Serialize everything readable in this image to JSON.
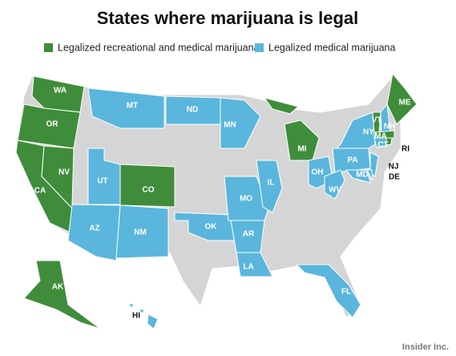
{
  "title": "States where marijuana is legal",
  "legend": [
    {
      "label": "Legalized recreational and medical marijuana",
      "color": "#3f8d3b"
    },
    {
      "label": "Legalized medical marijuana",
      "color": "#5ab6dc"
    }
  ],
  "other_color": "#d5d5d5",
  "states": [
    {
      "label": "WA",
      "group": 0
    },
    {
      "label": "OR",
      "group": 0
    },
    {
      "label": "CA",
      "group": 0
    },
    {
      "label": "NV",
      "group": 0
    },
    {
      "label": "AK",
      "group": 0
    },
    {
      "label": "HI",
      "group": 1
    },
    {
      "label": "MT",
      "group": 1
    },
    {
      "label": "ND",
      "group": 1
    },
    {
      "label": "MN",
      "group": 1
    },
    {
      "label": "UT",
      "group": 1
    },
    {
      "label": "CO",
      "group": 0
    },
    {
      "label": "AZ",
      "group": 1
    },
    {
      "label": "NM",
      "group": 1
    },
    {
      "label": "OK",
      "group": 1
    },
    {
      "label": "MO",
      "group": 1
    },
    {
      "label": "AR",
      "group": 1
    },
    {
      "label": "LA",
      "group": 1
    },
    {
      "label": "IL",
      "group": 1
    },
    {
      "label": "MI",
      "group": 0
    },
    {
      "label": "OH",
      "group": 1
    },
    {
      "label": "PA",
      "group": 1
    },
    {
      "label": "NY",
      "group": 1
    },
    {
      "label": "VT",
      "group": 0
    },
    {
      "label": "NH",
      "group": 1
    },
    {
      "label": "ME",
      "group": 0
    },
    {
      "label": "MA",
      "group": 0
    },
    {
      "label": "CT",
      "group": 1
    },
    {
      "label": "RI",
      "group": 0
    },
    {
      "label": "NJ",
      "group": 1
    },
    {
      "label": "DE",
      "group": 1
    },
    {
      "label": "MD",
      "group": 1
    },
    {
      "label": "WV",
      "group": 1
    },
    {
      "label": "FL",
      "group": 1
    }
  ],
  "credit": "Insider Inc."
}
